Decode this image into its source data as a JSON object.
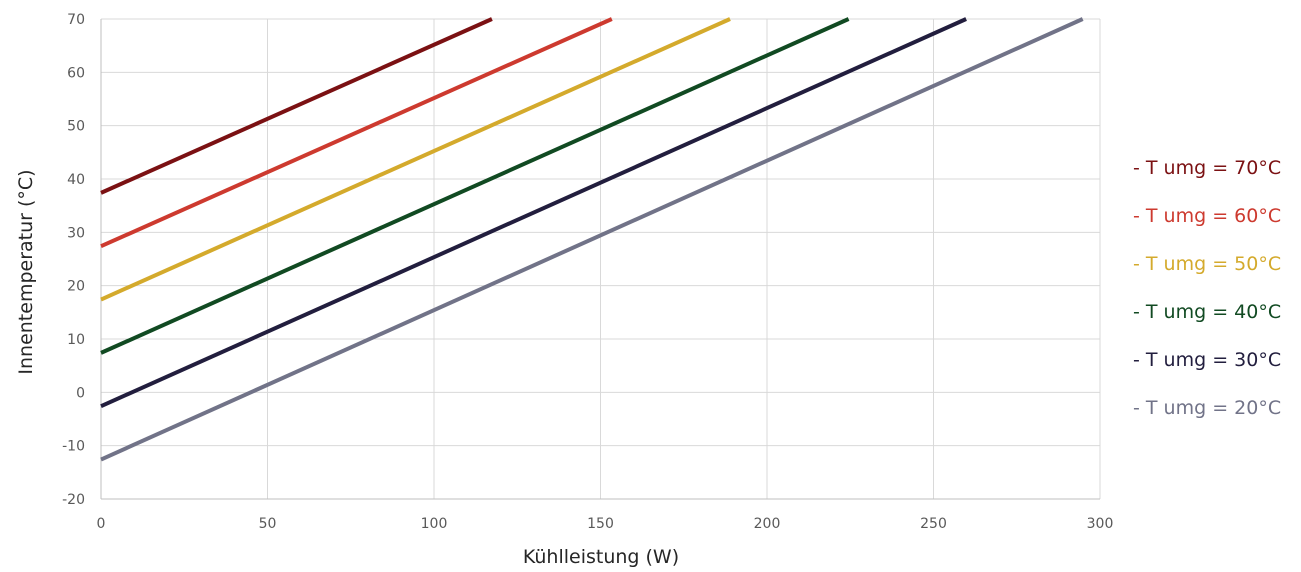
{
  "chart_data": {
    "type": "line",
    "xlabel": "Kühlleistung (W)",
    "ylabel": "Innentemperatur (°C)",
    "xlim": [
      0,
      300
    ],
    "ylim": [
      -20,
      70
    ],
    "xticks": [
      0,
      50,
      100,
      150,
      200,
      250,
      300
    ],
    "yticks": [
      -20,
      -10,
      0,
      10,
      20,
      30,
      40,
      50,
      60,
      70
    ],
    "grid": true,
    "legend_position": "right",
    "series": [
      {
        "name": "- T umg = 70°C",
        "color": "#7b1113",
        "x": [
          0,
          117.4
        ],
        "y": [
          37.4,
          70
        ]
      },
      {
        "name": "- T umg = 60°C",
        "color": "#cd3a2f",
        "x": [
          0,
          153.4
        ],
        "y": [
          27.4,
          70
        ]
      },
      {
        "name": "- T umg = 50°C",
        "color": "#d4aa2c",
        "x": [
          0,
          188.9
        ],
        "y": [
          17.4,
          70
        ]
      },
      {
        "name": "- T umg = 40°C",
        "color": "#114a22",
        "x": [
          0,
          224.5
        ],
        "y": [
          7.4,
          70
        ]
      },
      {
        "name": "- T umg = 30°C",
        "color": "#221e3e",
        "x": [
          0,
          259.8
        ],
        "y": [
          -2.6,
          70
        ]
      },
      {
        "name": "- T umg = 20°C",
        "color": "#717388",
        "x": [
          0,
          294.8
        ],
        "y": [
          -12.6,
          70
        ]
      }
    ]
  }
}
